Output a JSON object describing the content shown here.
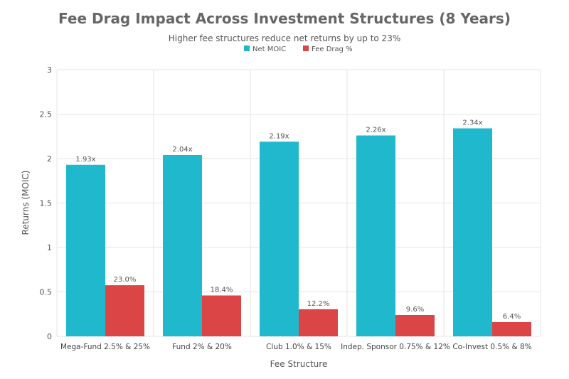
{
  "chart_data": {
    "type": "bar",
    "title": "Fee Drag Impact Across Investment Structures (8 Years)",
    "subtitle": "Higher fee structures reduce net returns by up to 23%",
    "xlabel": "Fee Structure",
    "ylabel": "Returns (MOIC)",
    "ylim": [
      0,
      3
    ],
    "yticks": [
      0,
      0.5,
      1,
      1.5,
      2,
      2.5,
      3
    ],
    "ytick_labels": [
      "0",
      "0.5",
      "1",
      "1.5",
      "2",
      "2.5",
      "3"
    ],
    "grid": true,
    "legend_position": "top-center",
    "categories": [
      "Mega-Fund 2.5% & 25%",
      "Fund 2% & 20%",
      "Club 1.0% & 15%",
      "Indep. Sponsor 0.75% & 12%",
      "Co-Invest 0.5% & 8%"
    ],
    "series": [
      {
        "name": "Net MOIC",
        "color": "#20b8cc",
        "values": [
          1.93,
          2.04,
          2.19,
          2.26,
          2.34
        ],
        "labels": [
          "1.93x",
          "2.04x",
          "2.19x",
          "2.26x",
          "2.34x"
        ]
      },
      {
        "name": "Fee Drag %",
        "color": "#dc4545",
        "values": [
          0.575,
          0.46,
          0.305,
          0.24,
          0.16
        ],
        "labels": [
          "23.0%",
          "18.4%",
          "12.2%",
          "9.6%",
          "6.4%"
        ]
      }
    ]
  }
}
